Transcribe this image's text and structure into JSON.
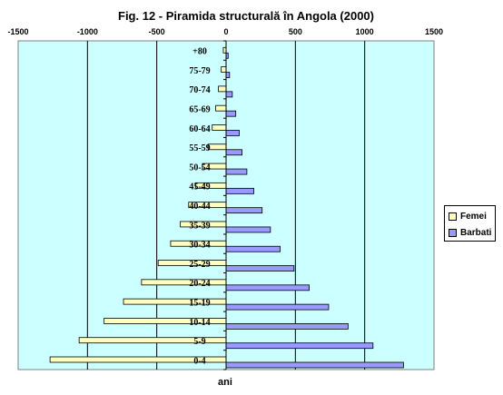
{
  "chart_data": {
    "type": "bar",
    "orientation": "horizontal",
    "title": "Fig. 12 - Piramida structurală în Angola (2000)",
    "xlabel": "ani",
    "ylabel": "",
    "xlim": [
      -1500,
      1500
    ],
    "xticks": [
      -1500,
      -1000,
      -500,
      0,
      500,
      1000,
      1500
    ],
    "xtick_labels": [
      "-1500",
      "-1000",
      "-500",
      "0",
      "500",
      "1000",
      "1500"
    ],
    "categories": [
      "0-4",
      "5-9",
      "10-14",
      "15-19",
      "20-24",
      "25-29",
      "30-34",
      "35-39",
      "40-44",
      "45-49",
      "50-54",
      "55-59",
      "60-64",
      "65-69",
      "70-74",
      "75-79",
      "+80"
    ],
    "series": [
      {
        "name": "Femei",
        "color": "#ffffc0",
        "values": [
          -1270,
          -1060,
          -880,
          -740,
          -610,
          -490,
          -400,
          -330,
          -270,
          -220,
          -170,
          -130,
          -100,
          -75,
          -55,
          -35,
          -20
        ]
      },
      {
        "name": "Barbati",
        "color": "#9999ff",
        "values": [
          1280,
          1060,
          880,
          740,
          600,
          490,
          390,
          320,
          260,
          200,
          150,
          115,
          95,
          70,
          45,
          25,
          15
        ]
      }
    ],
    "grid": true,
    "legend": "right",
    "plot_background": "#ccffff"
  }
}
